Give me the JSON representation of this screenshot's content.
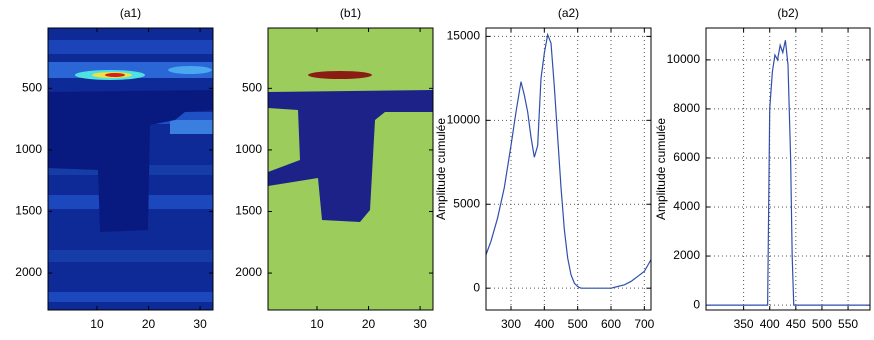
{
  "chart_data": [
    {
      "type": "image",
      "title": "(a1)",
      "xlim": [
        0.5,
        32.5
      ],
      "xticks": [
        10,
        20,
        30
      ],
      "ylim": [
        2300,
        10
      ],
      "yticks": [
        500,
        1000,
        1500,
        2000
      ]
    },
    {
      "type": "image",
      "title": "(b1)",
      "xlim": [
        0.5,
        32.5
      ],
      "xticks": [
        10,
        20,
        30
      ],
      "ylim": [
        2300,
        10
      ],
      "yticks": [
        500,
        1000,
        1500,
        2000
      ]
    },
    {
      "type": "line",
      "title": "(a2)",
      "y_label": "Amplitude cumulée",
      "color": "#2f4fae",
      "grid": true,
      "xlim": [
        225,
        720
      ],
      "xticks": [
        300,
        400,
        500,
        600,
        700
      ],
      "ylim": [
        -1300,
        15500
      ],
      "yticks": [
        0,
        5000,
        10000,
        15000
      ],
      "x": [
        225,
        240,
        260,
        280,
        300,
        315,
        330,
        340,
        350,
        360,
        370,
        380,
        390,
        400,
        410,
        420,
        430,
        440,
        450,
        460,
        470,
        480,
        490,
        500,
        510,
        520,
        550,
        600,
        620,
        640,
        660,
        680,
        700,
        720
      ],
      "values": [
        2000,
        2800,
        4200,
        6000,
        8500,
        10500,
        12300,
        11500,
        10500,
        9000,
        7800,
        8500,
        12500,
        14000,
        15100,
        14600,
        12000,
        9000,
        6000,
        3500,
        1800,
        800,
        300,
        100,
        0,
        0,
        0,
        0,
        100,
        200,
        400,
        700,
        1000,
        1700
      ]
    },
    {
      "type": "line",
      "title": "(b2)",
      "y_label": "Amplitude cumulée",
      "color": "#2f4fae",
      "grid": true,
      "xlim": [
        278,
        592
      ],
      "xticks": [
        350,
        400,
        450,
        500,
        550
      ],
      "ylim": [
        -200,
        11300
      ],
      "yticks": [
        0,
        2000,
        4000,
        6000,
        8000,
        10000
      ],
      "x": [
        278,
        390,
        396,
        400,
        405,
        410,
        415,
        420,
        425,
        430,
        435,
        440,
        443,
        446,
        450,
        500,
        550,
        592
      ],
      "values": [
        0,
        0,
        0,
        8000,
        9500,
        10200,
        10000,
        10600,
        10300,
        10800,
        9800,
        6000,
        2000,
        0,
        0,
        0,
        0,
        0
      ]
    }
  ]
}
